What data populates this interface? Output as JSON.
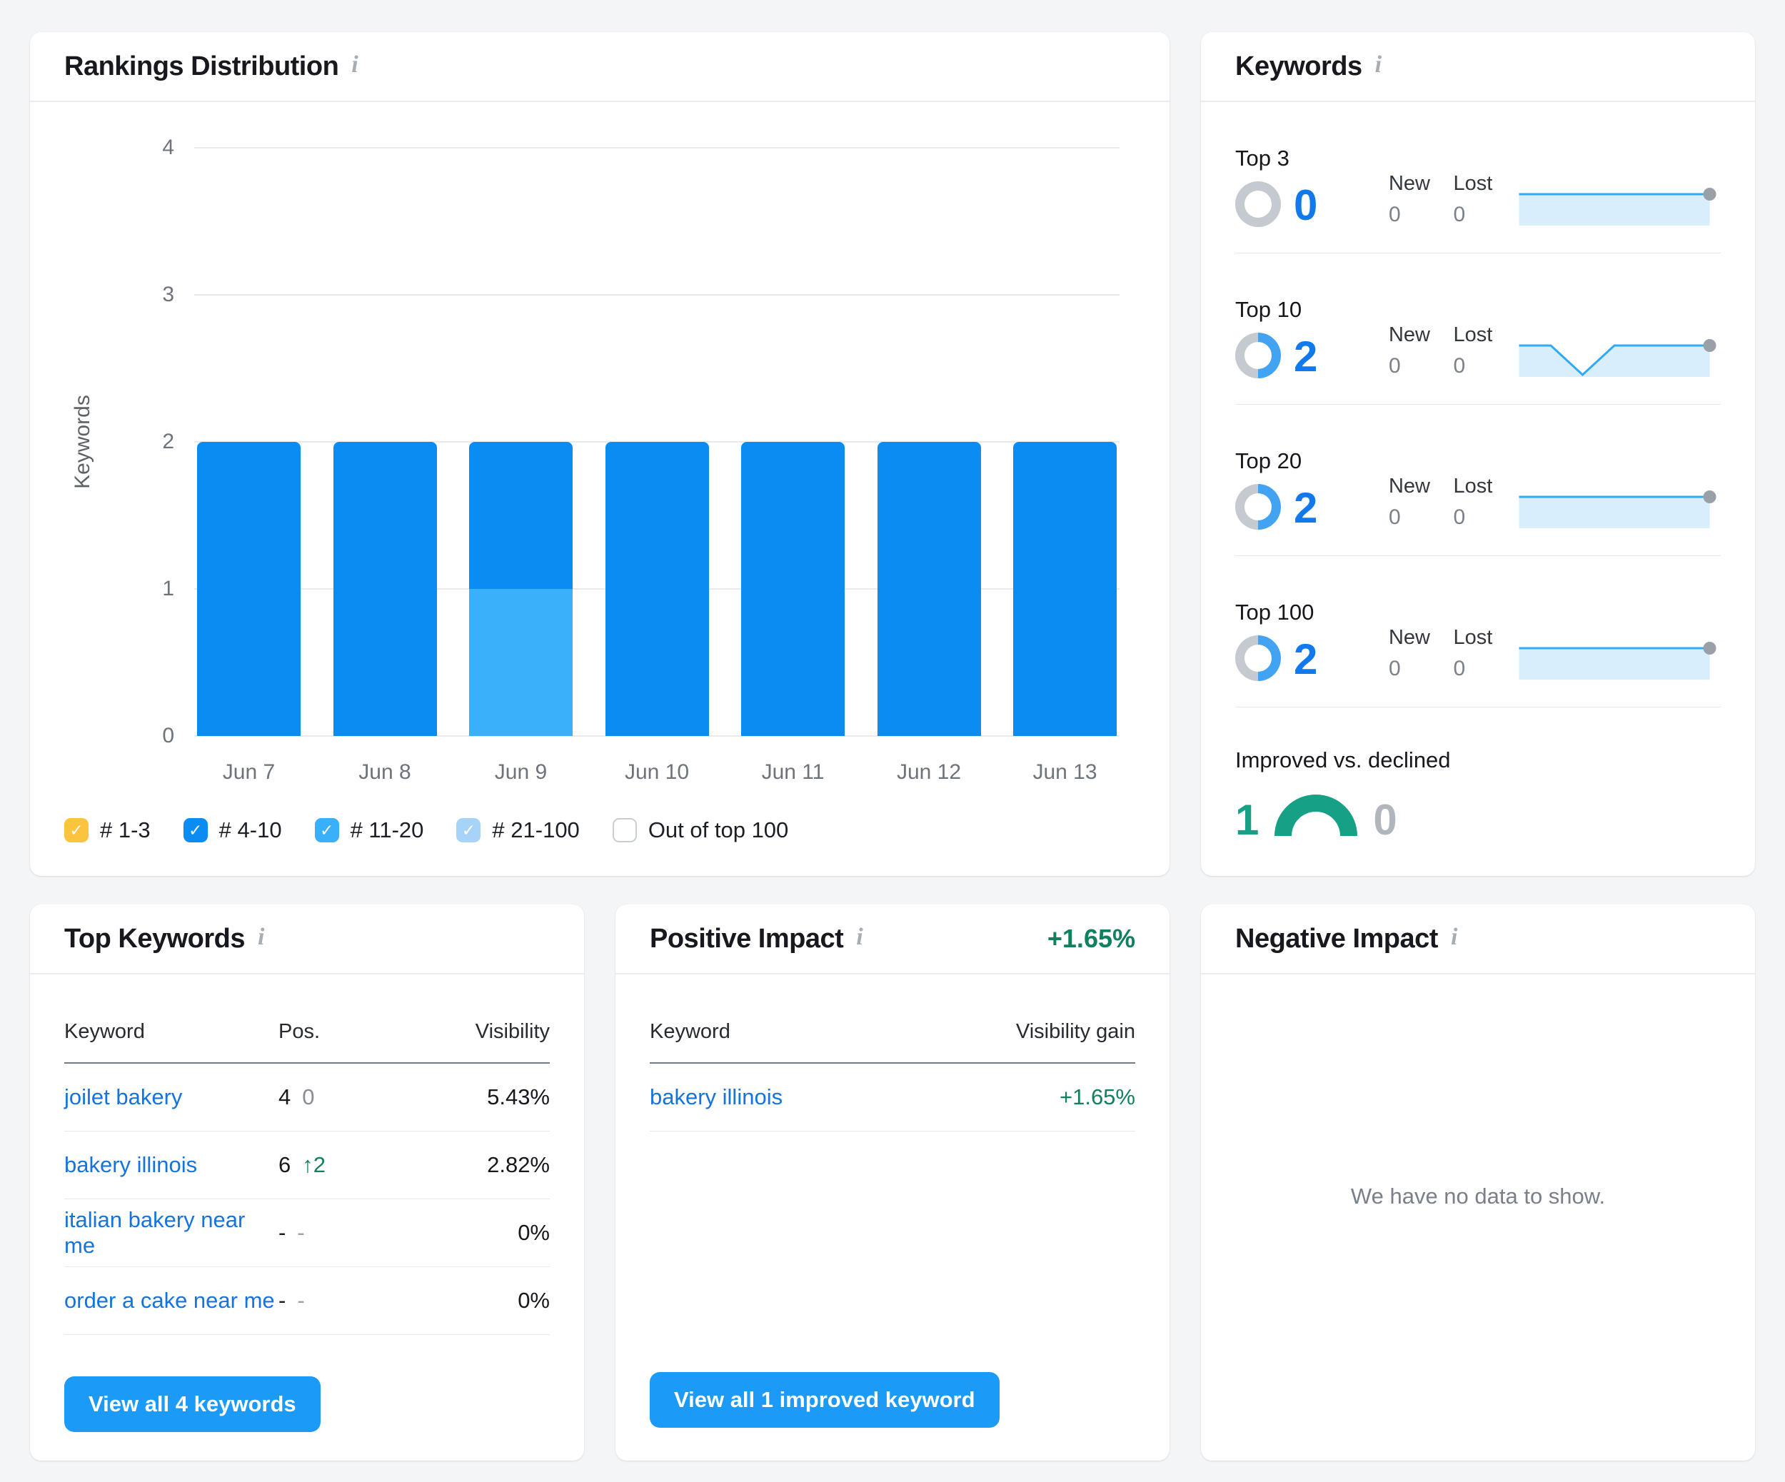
{
  "page": {
    "background": "#f4f5f7"
  },
  "colors": {
    "accent_blue": "#1279ec",
    "button_blue": "#1b9af7",
    "link_blue": "#1574dc",
    "positive_green_text": "#10805f",
    "gauge_green": "#16a085",
    "bar_blue": "#0b8cf2",
    "bar_light_blue": "#3ab0fb",
    "legend_orange": "#fcc33d",
    "legend_pale_blue": "#a8d3f8",
    "donut_blue": "#42a3f3",
    "neutral_ring_gray": "#c5cad1",
    "sparkline_line": "#2fa9f8",
    "sparkline_fill": "#d9eefc",
    "sparkline_dot": "#99a0a8"
  },
  "rankings_distribution": {
    "title": "Rankings Distribution",
    "info_icon": "i"
  },
  "keywords_card": {
    "title": "Keywords",
    "info_icon": "i",
    "total_tracked": 4,
    "labels": {
      "new": "New",
      "lost": "Lost"
    },
    "rows": [
      {
        "label": "Top 3",
        "value": 0,
        "new": 0,
        "lost": 0
      },
      {
        "label": "Top 10",
        "value": 2,
        "new": 0,
        "lost": 0
      },
      {
        "label": "Top 20",
        "value": 2,
        "new": 0,
        "lost": 0
      },
      {
        "label": "Top 100",
        "value": 2,
        "new": 0,
        "lost": 0
      }
    ],
    "improved_vs_declined": {
      "label": "Improved vs. declined",
      "improved": 1,
      "declined": 0
    }
  },
  "top_keywords": {
    "title": "Top Keywords",
    "info_icon": "i",
    "columns": [
      "Keyword",
      "Pos.",
      "Visibility"
    ],
    "rows": [
      {
        "keyword": "joilet bakery",
        "pos": "4",
        "change": "0",
        "change_type": "neutral",
        "visibility": "5.43%"
      },
      {
        "keyword": "bakery illinois",
        "pos": "6",
        "change": "↑2",
        "change_type": "up",
        "visibility": "2.82%"
      },
      {
        "keyword": "italian bakery near me",
        "pos": "-",
        "change": "-",
        "change_type": "none",
        "visibility": "0%"
      },
      {
        "keyword": "order a cake near me",
        "pos": "-",
        "change": "-",
        "change_type": "none",
        "visibility": "0%"
      }
    ],
    "view_all_button": "View all 4 keywords"
  },
  "positive_impact": {
    "title": "Positive Impact",
    "info_icon": "i",
    "total_gain": "+1.65%",
    "columns": [
      "Keyword",
      "Visibility gain"
    ],
    "rows": [
      {
        "keyword": "bakery illinois",
        "gain": "+1.65%"
      }
    ],
    "view_all_button": "View all 1 improved keyword"
  },
  "negative_impact": {
    "title": "Negative Impact",
    "info_icon": "i",
    "empty_message": "We have no data to show."
  },
  "chart_data": [
    {
      "id": "rankings-distribution-bar-chart",
      "type": "bar",
      "stacked": true,
      "title": "Rankings Distribution",
      "xlabel": "",
      "ylabel": "Keywords",
      "ylim": [
        0,
        4
      ],
      "yticks": [
        4,
        3,
        2,
        1,
        0
      ],
      "grid": true,
      "categories": [
        "Jun 7",
        "Jun 8",
        "Jun 9",
        "Jun 10",
        "Jun 11",
        "Jun 12",
        "Jun 13"
      ],
      "buckets": {
        "# 1-3": "#fcc33d",
        "# 4-10": "#0b8cf2",
        "# 11-20": "#3ab0fb",
        "# 21-100": "#a8d3f8"
      },
      "series": [
        {
          "name": "# 4-10",
          "values": [
            2,
            2,
            1,
            2,
            2,
            2,
            2
          ]
        },
        {
          "name": "# 11-20",
          "values": [
            0,
            0,
            1,
            0,
            0,
            0,
            0
          ]
        }
      ],
      "bars": [
        {
          "label": "Jun 7",
          "segments": [
            {
              "bucket": "# 4-10",
              "value": 2
            }
          ]
        },
        {
          "label": "Jun 8",
          "segments": [
            {
              "bucket": "# 4-10",
              "value": 2
            }
          ]
        },
        {
          "label": "Jun 9",
          "segments": [
            {
              "bucket": "# 11-20",
              "value": 1
            },
            {
              "bucket": "# 4-10",
              "value": 1
            }
          ]
        },
        {
          "label": "Jun 10",
          "segments": [
            {
              "bucket": "# 4-10",
              "value": 2
            }
          ]
        },
        {
          "label": "Jun 11",
          "segments": [
            {
              "bucket": "# 4-10",
              "value": 2
            }
          ]
        },
        {
          "label": "Jun 12",
          "segments": [
            {
              "bucket": "# 4-10",
              "value": 2
            }
          ]
        },
        {
          "label": "Jun 13",
          "segments": [
            {
              "bucket": "# 4-10",
              "value": 2
            }
          ]
        }
      ],
      "legend_position": "bottom",
      "legend": [
        {
          "label": "# 1-3",
          "checked": true,
          "color": "#fcc33d"
        },
        {
          "label": "# 4-10",
          "checked": true,
          "color": "#0b8cf2"
        },
        {
          "label": "# 11-20",
          "checked": true,
          "color": "#3ab0fb"
        },
        {
          "label": "# 21-100",
          "checked": true,
          "color": "#a8d3f8"
        },
        {
          "label": "Out of top 100",
          "checked": false,
          "color": "#ffffff"
        }
      ]
    },
    {
      "id": "keywords-sparklines",
      "type": "line",
      "x_points": 7,
      "series": [
        {
          "name": "Top 3",
          "values": [
            0,
            0,
            0,
            0,
            0,
            0,
            0
          ]
        },
        {
          "name": "Top 10",
          "values": [
            2,
            2,
            1,
            2,
            2,
            2,
            2
          ]
        },
        {
          "name": "Top 20",
          "values": [
            2,
            2,
            2,
            2,
            2,
            2,
            2
          ]
        },
        {
          "name": "Top 100",
          "values": [
            2,
            2,
            2,
            2,
            2,
            2,
            2
          ]
        }
      ]
    },
    {
      "id": "keywords-share-donuts",
      "type": "donut",
      "total": 4,
      "values": [
        {
          "label": "Top 3",
          "count": 0
        },
        {
          "label": "Top 10",
          "count": 2
        },
        {
          "label": "Top 20",
          "count": 2
        },
        {
          "label": "Top 100",
          "count": 2
        }
      ]
    },
    {
      "id": "improved-vs-declined-gauge",
      "type": "gauge",
      "improved": 1,
      "declined": 0
    }
  ]
}
